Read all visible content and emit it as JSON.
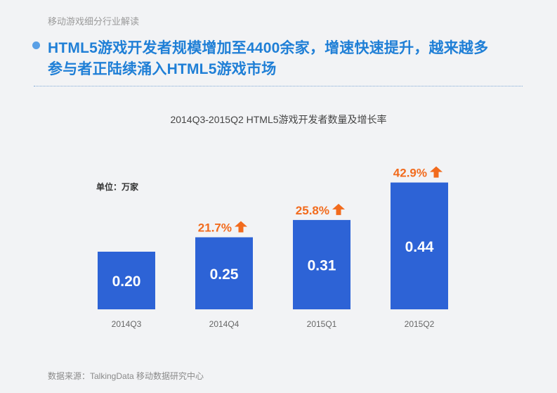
{
  "section_label": "移动游戏细分行业解读",
  "headline": {
    "line1": "HTML5游戏开发者规模增加至4400余家，增速快速提升，越来越多",
    "line2": "参与者正陆续涌入HTML5游戏市场"
  },
  "source": "数据来源：TalkingData 移动数据研究中心",
  "colors": {
    "bar": "#2d63d6",
    "growth": "#f26b1d",
    "headline": "#1f7fd6"
  },
  "chart_data": {
    "type": "bar",
    "title": "2014Q3-2015Q2 HTML5游戏开发者数量及增长率",
    "unit": "单位：万家",
    "categories": [
      "2014Q3",
      "2014Q4",
      "2015Q1",
      "2015Q2"
    ],
    "values": [
      0.2,
      0.25,
      0.31,
      0.44
    ],
    "value_labels": [
      "0.20",
      "0.25",
      "0.31",
      "0.44"
    ],
    "growth_labels": [
      "",
      "21.7%",
      "25.8%",
      "42.9%"
    ],
    "grid": false,
    "legend": "none"
  }
}
